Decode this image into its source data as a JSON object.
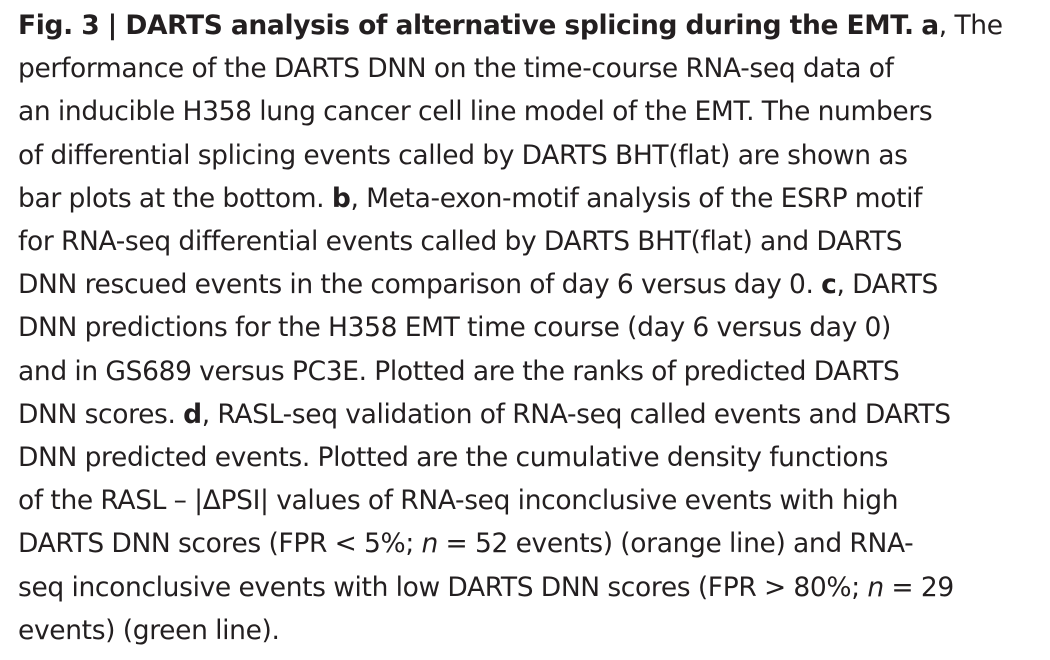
{
  "caption": {
    "lines": [
      {
        "figure_label": "Fig. 3 | DARTS analysis of alternative splicing during the EMT.",
        "panel_a": "a",
        "text": ", The"
      },
      {
        "text": "performance of the DARTS DNN on the time-course RNA-seq data of"
      },
      {
        "text": "an inducible H358 lung cancer cell line model of the EMT. The numbers"
      },
      {
        "text": "of differential splicing events called by DARTS BHT(flat) are shown as"
      },
      {
        "text_before": "bar plots at the bottom. ",
        "panel_b": "b",
        "text_after": ", Meta-exon-motif analysis of the ESRP motif"
      },
      {
        "text": "for RNA-seq differential events called by DARTS BHT(flat) and DARTS"
      },
      {
        "text_before": "DNN rescued events in the comparison of day 6 versus day 0. ",
        "panel_c": "c",
        "text_after": ", DARTS"
      },
      {
        "text": "DNN predictions for the H358 EMT time course (day 6 versus day 0)"
      },
      {
        "text": "and in GS689 versus PC3E. Plotted are the ranks of predicted DARTS"
      },
      {
        "text_before": "DNN scores. ",
        "panel_d": "d",
        "text_after": ", RASL-seq validation of RNA-seq called events and DARTS"
      },
      {
        "text": "DNN predicted events. Plotted are the cumulative density functions"
      },
      {
        "text": "of the RASL – |ΔPSI| values of RNA-seq inconclusive events with high"
      },
      {
        "text_before": "DARTS DNN scores (FPR < 5%; ",
        "n_symbol": "n",
        "text_after": " = 52 events) (orange line) and RNA-"
      },
      {
        "text_before": "seq inconclusive events with low DARTS DNN scores (FPR > 80%; ",
        "n_symbol": "n",
        "text_after": " = 29"
      },
      {
        "text": "events) (green line)."
      }
    ]
  }
}
